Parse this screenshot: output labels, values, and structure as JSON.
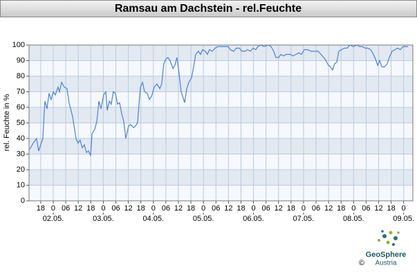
{
  "chart_data": {
    "type": "line",
    "title": "Ramsau am Dachstein - rel.Feuchte",
    "ylabel": "rel. Feuchte in %",
    "color": "#4a7fd8",
    "grid": true,
    "xlim": [
      -11.6,
      172.4
    ],
    "ylim": [
      0,
      100
    ],
    "yticks": [
      0,
      10,
      20,
      30,
      40,
      50,
      60,
      70,
      80,
      90,
      100
    ],
    "xticks": [
      {
        "value": -6,
        "label": "18"
      },
      0,
      {
        "value": 6,
        "label": "06"
      },
      12,
      18,
      {
        "value": 24,
        "label": "0"
      },
      {
        "value": 30,
        "label": "06"
      },
      {
        "value": 36,
        "label": "12"
      },
      {
        "value": 42,
        "label": "18"
      },
      {
        "value": 48,
        "label": "0"
      },
      {
        "value": 54,
        "label": "06"
      },
      {
        "value": 60,
        "label": "12"
      },
      {
        "value": 66,
        "label": "18"
      },
      {
        "value": 72,
        "label": "0"
      },
      {
        "value": 78,
        "label": "06"
      },
      {
        "value": 84,
        "label": "12"
      },
      {
        "value": 90,
        "label": "18"
      },
      {
        "value": 96,
        "label": "0"
      },
      {
        "value": 102,
        "label": "06"
      },
      {
        "value": 108,
        "label": "12"
      },
      {
        "value": 114,
        "label": "18"
      },
      {
        "value": 120,
        "label": "0"
      },
      {
        "value": 126,
        "label": "06"
      },
      {
        "value": 132,
        "label": "12"
      },
      {
        "value": 138,
        "label": "18"
      },
      {
        "value": 144,
        "label": "0"
      },
      {
        "value": 150,
        "label": "06"
      },
      {
        "value": 156,
        "label": "12"
      },
      {
        "value": 162,
        "label": "18"
      },
      {
        "value": 168,
        "label": "0"
      }
    ],
    "xdate_ticks": [
      {
        "value": 0,
        "label": "02.05."
      },
      {
        "value": 24,
        "label": "03.05."
      },
      {
        "value": 48,
        "label": "04.05."
      },
      {
        "value": 72,
        "label": "05.05."
      },
      {
        "value": 96,
        "label": "06.05."
      },
      {
        "value": 120,
        "label": "07.05."
      },
      {
        "value": 144,
        "label": "08.05."
      },
      {
        "value": 168,
        "label": "09.05."
      }
    ],
    "x": [
      -11.3,
      -9.6,
      -8.0,
      -7.0,
      -5.0,
      -4.0,
      -3.0,
      -2.0,
      -1.0,
      0,
      1.0,
      2.3,
      3.0,
      4.0,
      5.3,
      6.6,
      7.6,
      9.3,
      10.9,
      11.9,
      12.9,
      13.9,
      14.9,
      15.9,
      16.9,
      17.9,
      18.6,
      19.9,
      20.9,
      21.9,
      22.9,
      24.2,
      25.2,
      25.9,
      26.9,
      27.8,
      28.8,
      29.8,
      30.8,
      31.8,
      32.8,
      33.8,
      34.8,
      36.1,
      37.1,
      38.5,
      39.4,
      40.4,
      41.8,
      42.8,
      43.8,
      45.1,
      46.1,
      47.1,
      48.4,
      49.7,
      51.1,
      52.0,
      53.0,
      54.0,
      55.0,
      56.0,
      57.4,
      58.3,
      59.3,
      60.3,
      61.3,
      62.3,
      63.0,
      64.0,
      65.0,
      66.3,
      67.3,
      68.3,
      69.6,
      70.6,
      71.6,
      72.9,
      73.9,
      74.9,
      76.2,
      77.6,
      78.9,
      80.6,
      82.2,
      83.9,
      84.9,
      86.5,
      87.8,
      89.2,
      90.5,
      91.8,
      93.2,
      94.5,
      95.8,
      97.1,
      98.1,
      99.5,
      101.1,
      103.1,
      104.4,
      105.7,
      106.7,
      108.1,
      109.1,
      110.4,
      111.7,
      113.7,
      115.0,
      116.4,
      117.7,
      119.0,
      120.3,
      122.0,
      123.6,
      125.3,
      127.0,
      129.0,
      130.3,
      131.9,
      132.9,
      133.9,
      134.9,
      135.9,
      136.9,
      138.2,
      139.6,
      140.9,
      142.2,
      143.9,
      145.5,
      146.9,
      148.2,
      149.5,
      150.8,
      152.2,
      153.5,
      154.5,
      155.5,
      156.5,
      157.5,
      158.8,
      160.1,
      161.1,
      162.4,
      163.8,
      165.1,
      166.4,
      167.7,
      170.1
    ],
    "values": [
      33,
      37,
      40,
      32,
      40,
      64,
      59,
      69,
      65,
      70,
      68,
      73,
      70,
      76,
      73,
      72,
      63,
      54,
      40,
      37,
      39,
      34,
      36,
      31,
      32,
      29,
      43,
      46,
      51,
      64,
      59,
      68,
      70,
      58,
      64,
      62,
      70,
      69,
      62,
      63,
      56,
      51,
      40,
      48,
      49,
      47,
      48,
      50,
      73,
      76,
      70,
      69,
      65,
      67,
      73,
      75,
      72,
      75,
      88,
      91,
      92,
      90,
      85,
      87,
      92,
      82,
      70,
      66,
      63,
      72,
      76,
      79,
      86,
      94,
      96,
      94,
      97,
      96,
      94,
      97,
      96,
      98,
      99,
      99,
      99,
      99,
      97,
      96,
      98,
      98,
      96,
      96,
      97,
      96,
      98,
      97,
      99,
      100,
      99,
      100,
      99,
      96,
      92,
      92,
      94,
      93,
      94,
      94,
      93,
      94,
      95,
      94,
      97,
      97,
      96,
      96,
      96,
      93,
      91,
      87,
      86,
      84,
      88,
      89,
      96,
      97,
      98,
      98,
      100,
      99,
      100,
      99,
      99,
      98,
      98,
      97,
      94,
      91,
      87,
      90,
      86,
      86,
      88,
      92,
      96,
      97,
      98,
      97,
      99,
      99
    ]
  },
  "branding": {
    "name": "GeoSphere",
    "sub": "Austria",
    "copyright": "©"
  }
}
